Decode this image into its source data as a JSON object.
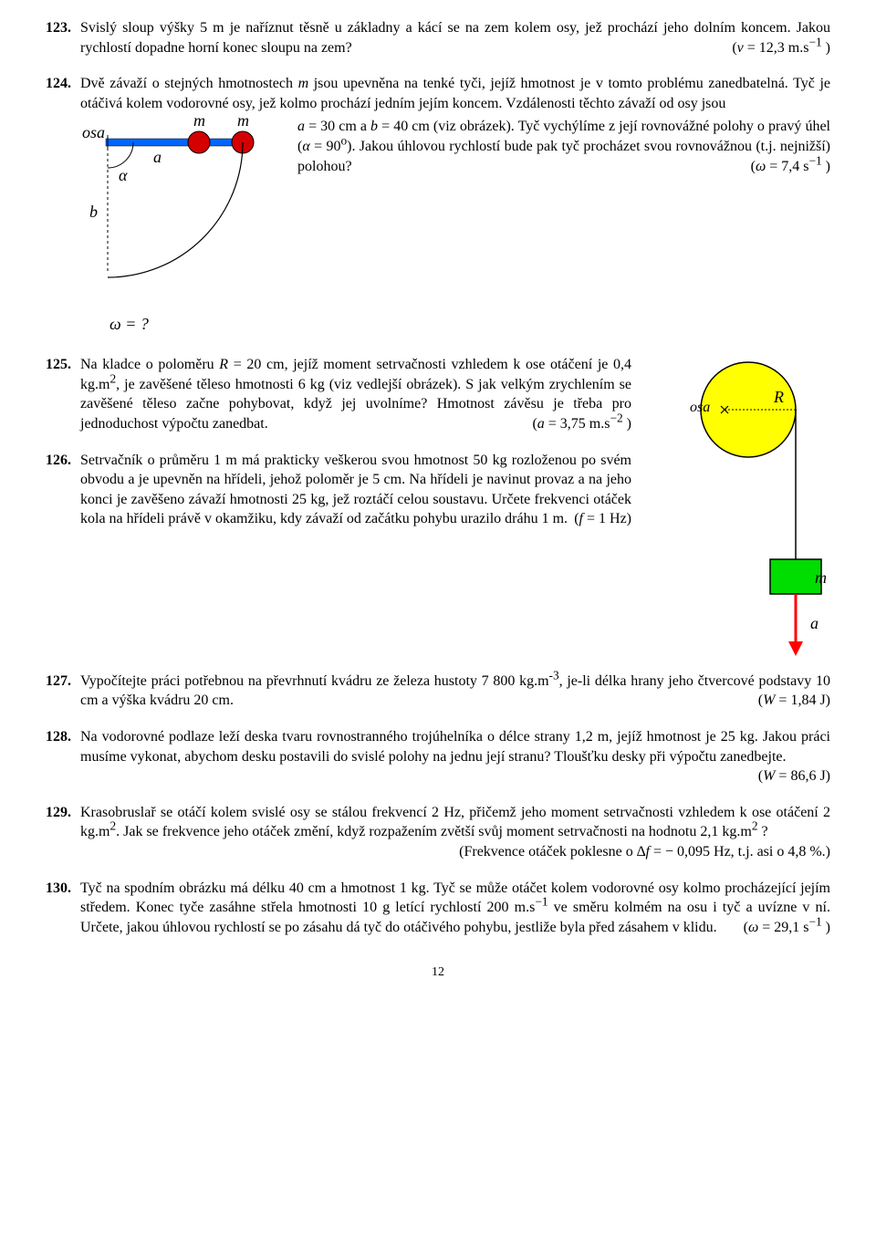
{
  "p123": {
    "num": "123.",
    "text": "Svislý sloup výšky 5 m je naříznut těsně u základny a kácí se na zem kolem osy, jež prochází jeho dolním koncem. Jakou rychlostí dopadne horní konec sloupu na zem?",
    "ans_html": "(<i>v</i> = 12,3 m.s<sup>−1</sup> )"
  },
  "p124": {
    "num": "124.",
    "intro": "Dvě závaží o stejných hmotnostech ",
    "intro_var": "m",
    "intro2": " jsou upevněna na tenké tyči, jejíž hmotnost je v tomto problému zanedbatelná. Tyč je otáčivá kolem vodorovné osy, jež kolmo prochází jedním jejím koncem. Vzdálenosti těchto závaží od osy jsou ",
    "ab_html": "<i>a</i> = 30 cm a <i>b</i> = 40 cm (viz obrázek). Tyč vychýlíme z její rovnovážné polohy o pravý úhel (<i>α</i> = 90<sup>o</sup>). Jakou úhlovou rychlostí bude pak tyč procházet svou rovnovážnou (t.j. nejnižší) polohou?",
    "ans_html": "(<i>ω</i> = 7,4 s<sup>−1</sup> )",
    "omega_q": "ω  = ?",
    "fig": {
      "osa_label": "osa",
      "a_label": "a",
      "b_label": "b",
      "m_label1": "m",
      "m_label2": "m",
      "alpha_label": "α",
      "bar_color": "#0066ff",
      "mass_fill": "#d40000",
      "mass_stroke": "#000000",
      "arc_color": "#000000"
    }
  },
  "p125": {
    "num": "125.",
    "text_html": "Na kladce o poloměru <i>R</i> = 20 cm, jejíž moment setrvačnosti vzhledem k ose otáčení je 0,4 kg.m<sup>2</sup>, je zavěšené těleso hmotnosti 6 kg (viz vedlejší obrázek). S jak velkým zrychlením se zavěšené těleso začne pohybovat, když jej uvolníme? Hmotnost závěsu je třeba pro jednoduchost výpočtu zanedbat.",
    "ans_html": "(<i>a</i> = 3,75 m.s<sup>−2</sup> )"
  },
  "p126": {
    "num": "126.",
    "text_html": "Setrvačník o průměru 1 m má prakticky veškerou svou hmotnost 50 kg rozloženou po svém obvodu a je upevněn na hřídeli, jehož poloměr je 5 cm. Na hřídeli je navinut provaz a na jeho konci je zavěšeno závaží hmotnosti 25 kg, jež roztáčí celou soustavu. Určete frekvenci otáček kola na hřídeli právě v okamžiku, kdy závaží od začátku pohybu urazilo dráhu 1 m.",
    "ans_html": "(<i>f</i> = 1 Hz)"
  },
  "fig125": {
    "pulley_fill": "#ffff00",
    "pulley_stroke": "#000000",
    "mass_fill": "#00dd00",
    "mass_stroke": "#000000",
    "arrow_color": "#ff0000",
    "osa_label": "osa",
    "R_label": "R",
    "m_label": "m",
    "a_label": "a"
  },
  "p127": {
    "num": "127.",
    "text_html": "Vypočítejte práci potřebnou na převrhnutí kvádru ze železa hustoty 7 800 kg.m<sup>-3</sup>, je-li délka hrany jeho čtvercové podstavy 10 cm a výška kvádru 20 cm.",
    "ans_html": "(<i>W</i> = 1,84 J)"
  },
  "p128": {
    "num": "128.",
    "text": "Na vodorovné podlaze leží deska tvaru rovnostranného trojúhelníka o délce strany 1,2 m, jejíž hmotnost je 25 kg. Jakou práci musíme vykonat, abychom desku postavili do svislé polohy na jednu její stranu? Tloušťku desky při výpočtu zanedbejte.",
    "ans_html": "(<i>W</i> = 86,6 J)"
  },
  "p129": {
    "num": "129.",
    "text_html": "Krasobruslař se otáčí kolem svislé osy se stálou frekvencí 2 Hz, přičemž jeho moment setrvačnosti vzhledem k ose otáčení 2 kg.m<sup>2</sup>. Jak se frekvence jeho otáček změní, když rozpažením zvětší svůj moment setrvačnosti na hodnotu 2,1 kg.m<sup>2</sup> ?",
    "ans_html": "(Frekvence otáček poklesne o <i>∆f</i> = − 0,095 Hz, t.j. asi o 4,8 %.)"
  },
  "p130": {
    "num": "130.",
    "text_html": "Tyč na spodním obrázku má délku 40 cm a hmotnost 1 kg. Tyč se může otáčet kolem vodorovné osy kolmo procházející jejím středem. Konec tyče zasáhne střela hmotnosti 10 g letící rychlostí 200 m.s<sup>−1</sup> ve směru kolmém na osu i tyč a uvízne v ní. Určete, jakou úhlovou rychlostí se po zásahu dá tyč do otáčivého pohybu, jestliže byla před zásahem v klidu.",
    "ans_html": "(<i>ω</i> = 29,1 s<sup>−1</sup> )"
  },
  "page": "12"
}
